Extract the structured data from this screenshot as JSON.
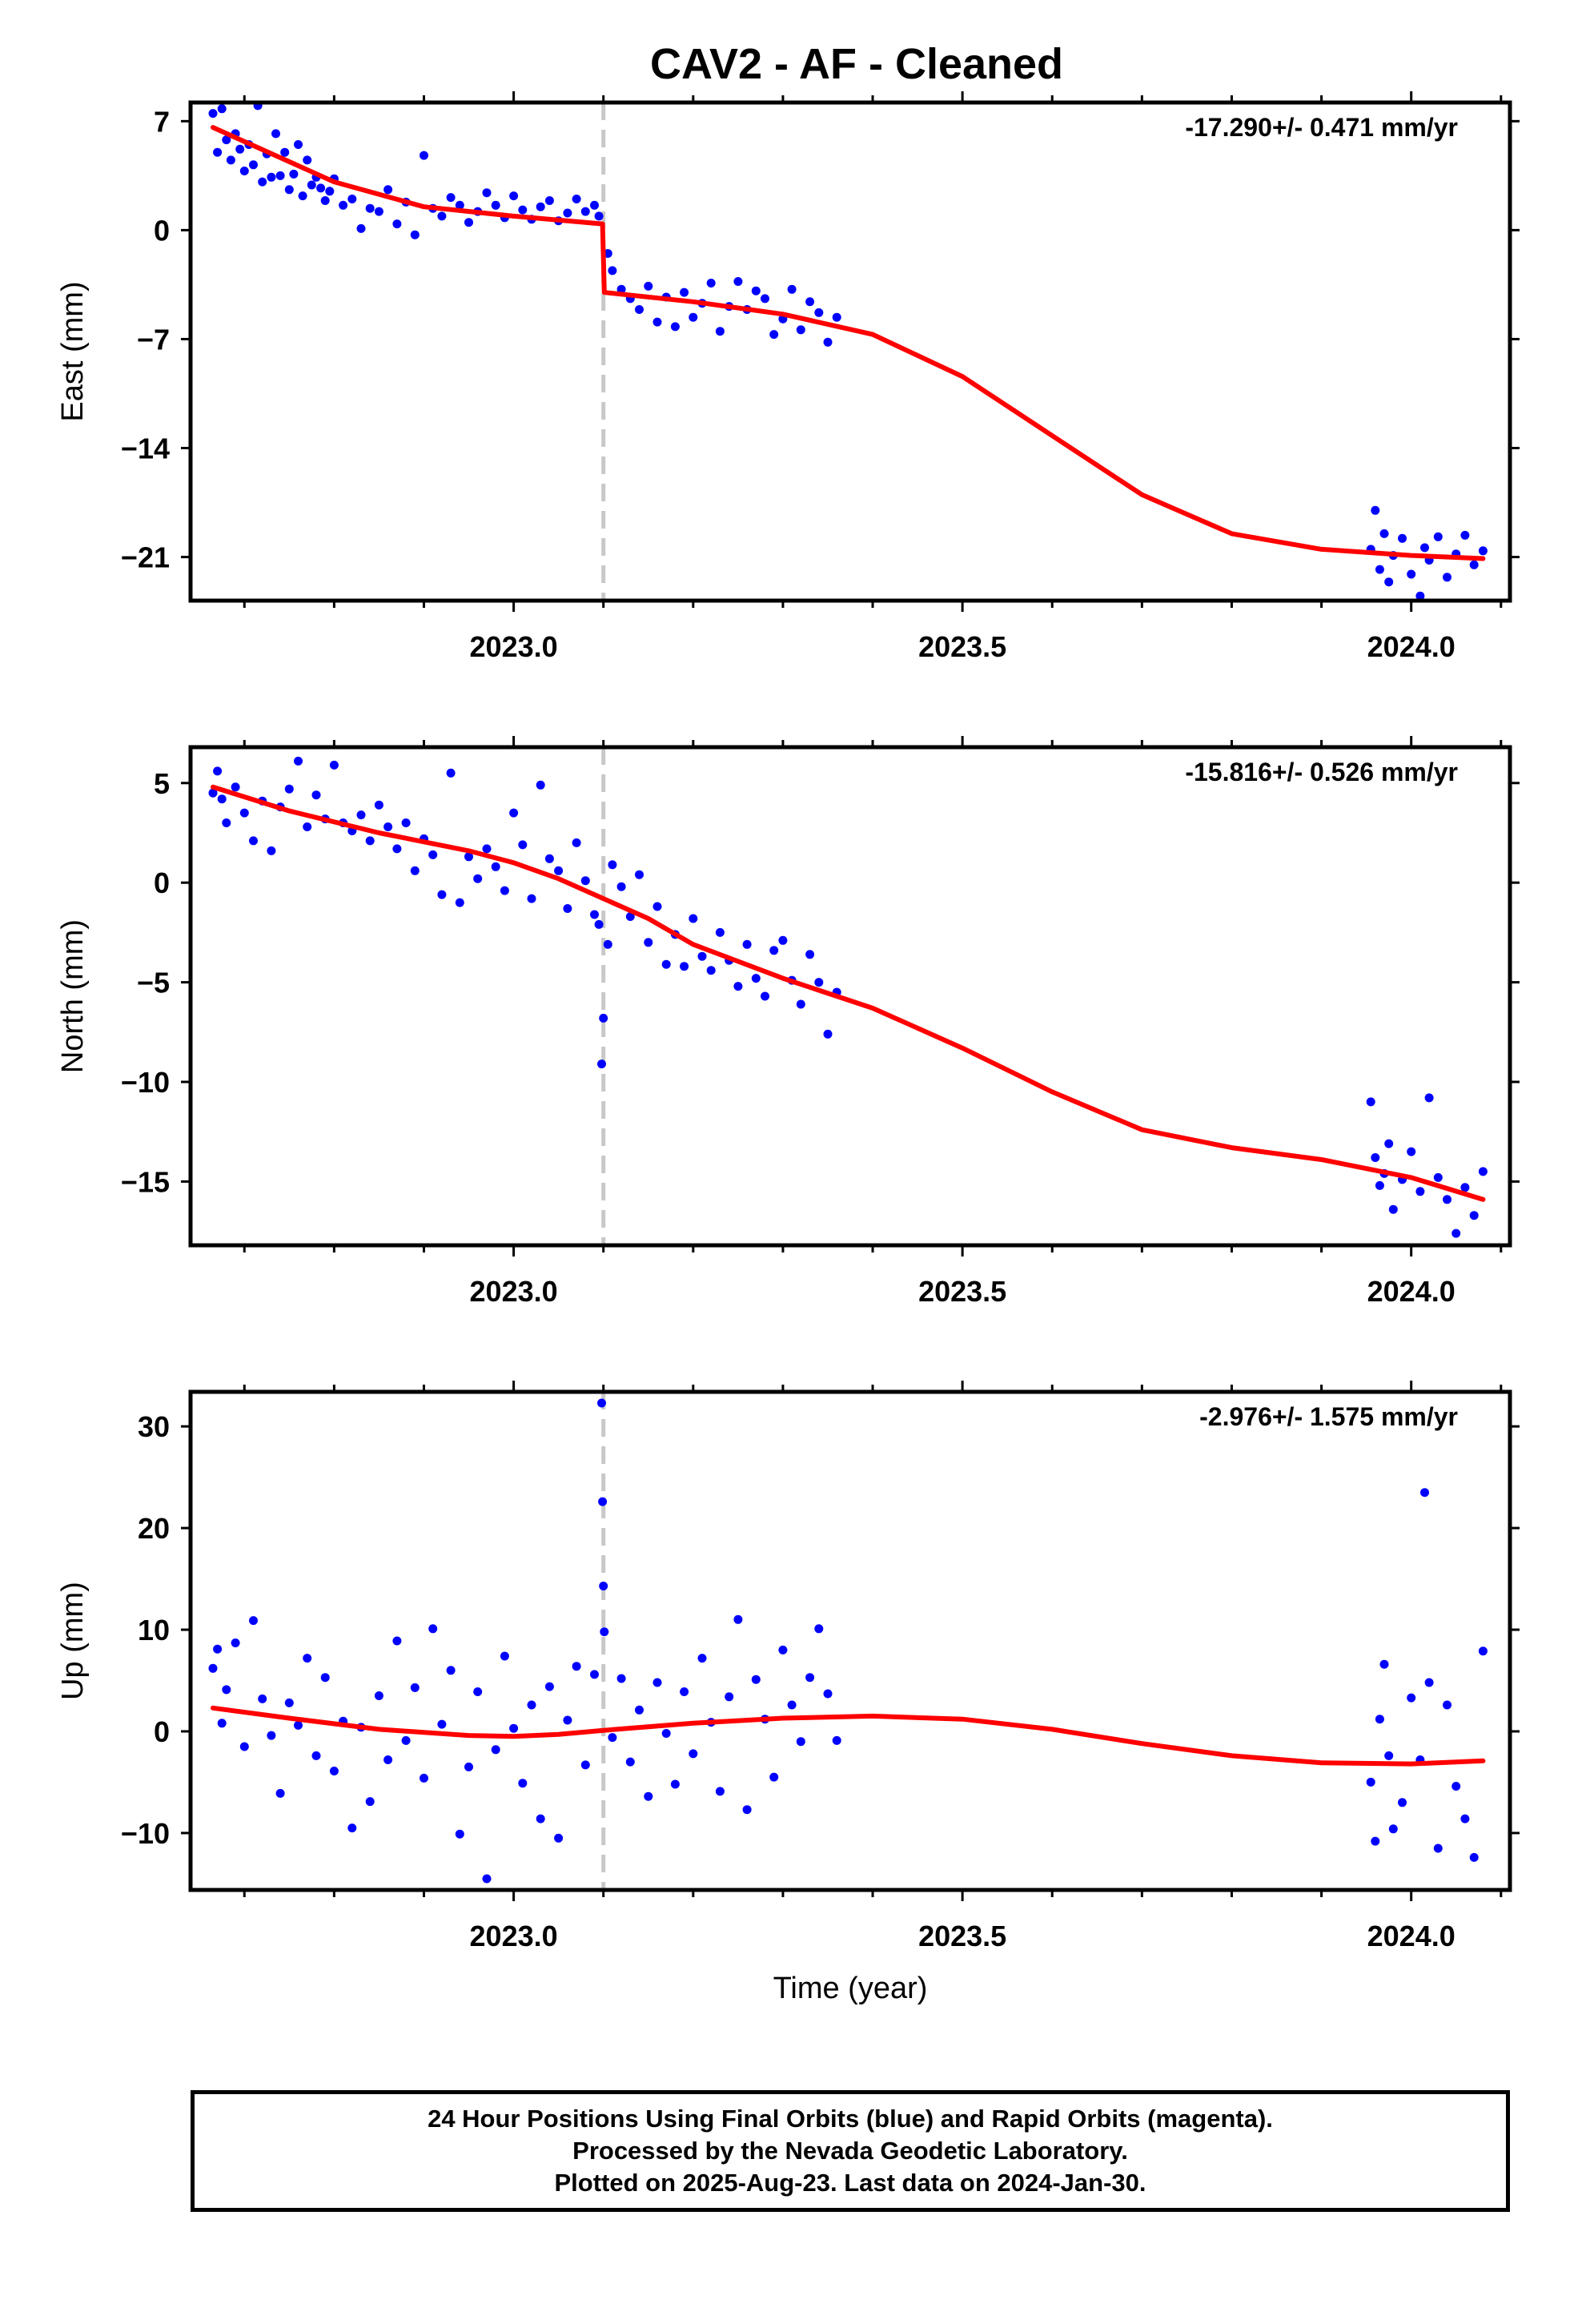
{
  "title": "CAV2  - AF - Cleaned",
  "colors": {
    "points": "#0000ff",
    "model": "#ff0000",
    "offset_line": "#c8c8c8"
  },
  "chart_data": [
    {
      "type": "scatter",
      "panel": "east",
      "ylabel": "East (mm)",
      "xlabel": "",
      "rate": "-17.290+/- 0.471 mm/yr",
      "xlim": [
        2022.64,
        2024.11
      ],
      "ylim": [
        -23.8,
        8.2
      ],
      "yticks": [
        7,
        0,
        -7,
        -14,
        -21
      ],
      "ytick_labels": [
        "7",
        "0",
        "−7",
        "−14",
        "−21"
      ],
      "xticks": [
        2023.0,
        2023.5,
        2024.0
      ],
      "xtick_labels": [
        "2023.0",
        "2023.5",
        "2024.0"
      ],
      "offset_epoch": 2023.1,
      "series": [
        {
          "role": "observations",
          "x": [
            2022.665,
            2022.67,
            2022.675,
            2022.68,
            2022.685,
            2022.69,
            2022.695,
            2022.7,
            2022.705,
            2022.71,
            2022.715,
            2022.72,
            2022.725,
            2022.73,
            2022.735,
            2022.74,
            2022.745,
            2022.75,
            2022.755,
            2022.76,
            2022.765,
            2022.77,
            2022.775,
            2022.78,
            2022.785,
            2022.79,
            2022.795,
            2022.8,
            2022.81,
            2022.82,
            2022.83,
            2022.84,
            2022.85,
            2022.86,
            2022.87,
            2022.88,
            2022.89,
            2022.9,
            2022.91,
            2022.92,
            2022.93,
            2022.94,
            2022.95,
            2022.96,
            2022.97,
            2022.98,
            2022.99,
            2023.0,
            2023.01,
            2023.02,
            2023.03,
            2023.04,
            2023.05,
            2023.06,
            2023.07,
            2023.08,
            2023.09,
            2023.095,
            2023.105,
            2023.11,
            2023.12,
            2023.13,
            2023.14,
            2023.15,
            2023.16,
            2023.17,
            2023.18,
            2023.19,
            2023.2,
            2023.21,
            2023.22,
            2023.23,
            2023.24,
            2023.25,
            2023.26,
            2023.27,
            2023.28,
            2023.29,
            2023.3,
            2023.31,
            2023.32,
            2023.33,
            2023.34,
            2023.35,
            2023.36,
            2023.955,
            2023.96,
            2023.965,
            2023.97,
            2023.975,
            2023.98,
            2023.99,
            2024.0,
            2024.01,
            2024.015,
            2024.02,
            2024.03,
            2024.04,
            2024.05,
            2024.06,
            2024.07,
            2024.08
          ],
          "y": [
            7.5,
            5.0,
            7.8,
            5.8,
            4.5,
            6.2,
            5.2,
            3.8,
            5.5,
            4.2,
            8.0,
            3.1,
            4.9,
            3.4,
            6.2,
            3.5,
            5.0,
            2.6,
            3.6,
            5.5,
            2.2,
            4.5,
            2.9,
            3.4,
            2.7,
            1.9,
            2.5,
            3.3,
            1.6,
            2.0,
            0.1,
            1.4,
            1.2,
            2.6,
            0.4,
            1.8,
            -0.3,
            4.8,
            1.4,
            0.9,
            2.1,
            1.6,
            0.5,
            1.2,
            2.4,
            1.6,
            0.8,
            2.2,
            1.3,
            0.7,
            1.5,
            1.9,
            0.6,
            1.1,
            2.0,
            1.2,
            1.6,
            0.9,
            -1.5,
            -2.6,
            -3.8,
            -4.4,
            -5.1,
            -3.6,
            -5.9,
            -4.3,
            -6.2,
            -4.0,
            -5.6,
            -4.7,
            -3.4,
            -6.5,
            -4.9,
            -3.3,
            -5.1,
            -3.9,
            -4.4,
            -6.7,
            -5.7,
            -3.8,
            -6.4,
            -4.6,
            -5.3,
            -7.2,
            -5.6,
            -20.5,
            -18.0,
            -21.8,
            -19.5,
            -22.6,
            -20.9,
            -19.8,
            -22.1,
            -23.5,
            -20.4,
            -21.2,
            -19.7,
            -22.3,
            -20.8,
            -19.6,
            -21.5,
            -20.6
          ]
        },
        {
          "role": "model",
          "x": [
            2022.665,
            2022.8,
            2022.9,
            2023.0,
            2023.099,
            2023.101,
            2023.2,
            2023.3,
            2023.4,
            2023.5,
            2023.6,
            2023.7,
            2023.8,
            2023.9,
            2024.0,
            2024.08
          ],
          "y": [
            6.6,
            3.1,
            1.5,
            0.9,
            0.4,
            -4.0,
            -4.6,
            -5.4,
            -6.7,
            -9.4,
            -13.2,
            -17.0,
            -19.5,
            -20.5,
            -20.9,
            -21.1
          ]
        }
      ]
    },
    {
      "type": "scatter",
      "panel": "north",
      "ylabel": "North (mm)",
      "xlabel": "",
      "rate": "-15.816+/- 0.526 mm/yr",
      "xlim": [
        2022.64,
        2024.11
      ],
      "ylim": [
        -18.2,
        6.8
      ],
      "yticks": [
        5,
        0,
        -5,
        -10,
        -15
      ],
      "ytick_labels": [
        "5",
        "0",
        "−5",
        "−10",
        "−15"
      ],
      "xticks": [
        2023.0,
        2023.5,
        2024.0
      ],
      "xtick_labels": [
        "2023.0",
        "2023.5",
        "2024.0"
      ],
      "offset_epoch": 2023.1,
      "series": [
        {
          "role": "observations",
          "x": [
            2022.665,
            2022.67,
            2022.675,
            2022.68,
            2022.69,
            2022.7,
            2022.71,
            2022.72,
            2022.73,
            2022.74,
            2022.75,
            2022.76,
            2022.77,
            2022.78,
            2022.79,
            2022.8,
            2022.81,
            2022.82,
            2022.83,
            2022.84,
            2022.85,
            2022.86,
            2022.87,
            2022.88,
            2022.89,
            2022.9,
            2022.91,
            2022.92,
            2022.93,
            2022.94,
            2022.95,
            2022.96,
            2022.97,
            2022.98,
            2022.99,
            2023.0,
            2023.01,
            2023.02,
            2023.03,
            2023.04,
            2023.05,
            2023.06,
            2023.07,
            2023.08,
            2023.09,
            2023.095,
            2023.098,
            2023.1,
            2023.105,
            2023.11,
            2023.12,
            2023.13,
            2023.14,
            2023.15,
            2023.16,
            2023.17,
            2023.18,
            2023.19,
            2023.2,
            2023.21,
            2023.22,
            2023.23,
            2023.24,
            2023.25,
            2023.26,
            2023.27,
            2023.28,
            2023.29,
            2023.3,
            2023.31,
            2023.32,
            2023.33,
            2023.34,
            2023.35,
            2023.36,
            2023.955,
            2023.96,
            2023.965,
            2023.97,
            2023.975,
            2023.98,
            2023.99,
            2024.0,
            2024.01,
            2024.02,
            2024.03,
            2024.04,
            2024.05,
            2024.06,
            2024.07,
            2024.08
          ],
          "y": [
            4.5,
            5.6,
            4.2,
            3.0,
            4.8,
            3.5,
            2.1,
            4.1,
            1.6,
            3.8,
            4.7,
            6.1,
            2.8,
            4.4,
            3.2,
            5.9,
            3.0,
            2.6,
            3.4,
            2.1,
            3.9,
            2.8,
            1.7,
            3.0,
            0.6,
            2.2,
            1.4,
            -0.6,
            5.5,
            -1.0,
            1.3,
            0.2,
            1.7,
            0.8,
            -0.4,
            3.5,
            1.9,
            -0.8,
            4.9,
            1.2,
            0.6,
            -1.3,
            2.0,
            0.1,
            -1.6,
            -2.1,
            -9.1,
            -6.8,
            -3.1,
            0.9,
            -0.2,
            -1.7,
            0.4,
            -3.0,
            -1.2,
            -4.1,
            -2.6,
            -4.2,
            -1.8,
            -3.7,
            -4.4,
            -2.5,
            -3.9,
            -5.2,
            -3.1,
            -4.8,
            -5.7,
            -3.4,
            -2.9,
            -4.9,
            -6.1,
            -3.6,
            -5.0,
            -7.6,
            -5.5,
            -11.0,
            -13.8,
            -15.2,
            -14.6,
            -13.1,
            -16.4,
            -14.9,
            -13.5,
            -15.5,
            -10.8,
            -14.8,
            -15.9,
            -17.6,
            -15.3,
            -16.7,
            -14.5
          ]
        },
        {
          "role": "model",
          "x": [
            2022.665,
            2022.75,
            2022.85,
            2022.95,
            2023.0,
            2023.05,
            2023.1,
            2023.15,
            2023.2,
            2023.3,
            2023.4,
            2023.5,
            2023.6,
            2023.7,
            2023.8,
            2023.9,
            2024.0,
            2024.08
          ],
          "y": [
            4.8,
            3.6,
            2.5,
            1.6,
            1.0,
            0.2,
            -0.8,
            -1.8,
            -3.1,
            -4.8,
            -6.3,
            -8.3,
            -10.5,
            -12.4,
            -13.3,
            -13.9,
            -14.8,
            -15.9
          ]
        }
      ]
    },
    {
      "type": "scatter",
      "panel": "up",
      "ylabel": "Up (mm)",
      "xlabel": "Time (year)",
      "rate": "-2.976+/- 1.575 mm/yr",
      "xlim": [
        2022.64,
        2024.11
      ],
      "ylim": [
        -15.6,
        33.4
      ],
      "yticks": [
        30,
        20,
        10,
        0,
        -10
      ],
      "ytick_labels": [
        "30",
        "20",
        "10",
        "0",
        "−10"
      ],
      "xticks": [
        2023.0,
        2023.5,
        2024.0
      ],
      "xtick_labels": [
        "2023.0",
        "2023.5",
        "2024.0"
      ],
      "offset_epoch": 2023.1,
      "series": [
        {
          "role": "observations",
          "x": [
            2022.665,
            2022.67,
            2022.675,
            2022.68,
            2022.69,
            2022.7,
            2022.71,
            2022.72,
            2022.73,
            2022.74,
            2022.75,
            2022.76,
            2022.77,
            2022.78,
            2022.79,
            2022.8,
            2022.81,
            2022.82,
            2022.83,
            2022.84,
            2022.85,
            2022.86,
            2022.87,
            2022.88,
            2022.89,
            2022.9,
            2022.91,
            2022.92,
            2022.93,
            2022.94,
            2022.95,
            2022.96,
            2022.97,
            2022.98,
            2022.99,
            2023.0,
            2023.01,
            2023.02,
            2023.03,
            2023.04,
            2023.05,
            2023.06,
            2023.07,
            2023.08,
            2023.09,
            2023.098,
            2023.099,
            2023.1,
            2023.101,
            2023.11,
            2023.12,
            2023.13,
            2023.14,
            2023.15,
            2023.16,
            2023.17,
            2023.18,
            2023.19,
            2023.2,
            2023.21,
            2023.22,
            2023.23,
            2023.24,
            2023.25,
            2023.26,
            2023.27,
            2023.28,
            2023.29,
            2023.3,
            2023.31,
            2023.32,
            2023.33,
            2023.34,
            2023.35,
            2023.36,
            2023.955,
            2023.96,
            2023.965,
            2023.97,
            2023.975,
            2023.98,
            2023.99,
            2024.0,
            2024.01,
            2024.015,
            2024.02,
            2024.03,
            2024.04,
            2024.05,
            2024.06,
            2024.07,
            2024.08
          ],
          "y": [
            6.2,
            8.1,
            0.8,
            4.1,
            8.7,
            -1.5,
            10.9,
            3.2,
            -0.4,
            -6.1,
            2.8,
            0.6,
            7.2,
            -2.4,
            5.3,
            -3.9,
            1.0,
            -9.5,
            0.4,
            -6.9,
            3.5,
            -2.8,
            8.9,
            -0.9,
            4.3,
            -4.6,
            10.1,
            0.7,
            6.0,
            -10.1,
            -3.5,
            3.9,
            -14.5,
            -1.8,
            7.4,
            0.3,
            -5.1,
            2.6,
            -8.6,
            4.4,
            -10.5,
            1.1,
            6.4,
            -3.3,
            5.6,
            32.3,
            22.6,
            14.3,
            9.8,
            -0.6,
            5.2,
            -3.0,
            2.1,
            -6.4,
            4.8,
            -0.2,
            -5.2,
            3.9,
            -2.2,
            7.2,
            0.9,
            -5.9,
            3.4,
            11.0,
            -7.7,
            5.1,
            1.2,
            -4.5,
            8.0,
            2.6,
            -1.0,
            5.3,
            10.1,
            3.7,
            -0.9,
            -5.0,
            -10.8,
            1.2,
            6.6,
            -2.4,
            -9.6,
            -7.0,
            3.3,
            -2.8,
            23.5,
            4.8,
            -11.5,
            2.6,
            -5.4,
            -8.6,
            -12.4,
            7.9
          ]
        },
        {
          "role": "model",
          "x": [
            2022.665,
            2022.75,
            2022.85,
            2022.95,
            2023.0,
            2023.05,
            2023.1,
            2023.2,
            2023.3,
            2023.4,
            2023.5,
            2023.6,
            2023.7,
            2023.8,
            2023.9,
            2024.0,
            2024.08
          ],
          "y": [
            2.3,
            1.3,
            0.2,
            -0.4,
            -0.5,
            -0.3,
            0.1,
            0.8,
            1.3,
            1.5,
            1.2,
            0.2,
            -1.2,
            -2.4,
            -3.1,
            -3.2,
            -2.9
          ]
        }
      ]
    }
  ],
  "footer": {
    "line1": "24 Hour Positions Using Final Orbits (blue) and Rapid Orbits (magenta).",
    "line2": "Processed by the Nevada Geodetic Laboratory.",
    "line3": "Plotted on 2025-Aug-23. Last data on 2024-Jan-30."
  }
}
